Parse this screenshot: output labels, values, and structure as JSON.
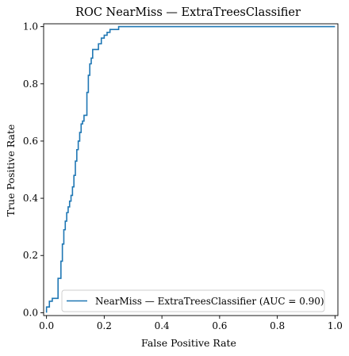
{
  "chart_data": {
    "type": "line",
    "title": "ROC NearMiss — ExtraTreesClassifier",
    "xlabel": "False Positive Rate",
    "ylabel": "True Positive Rate",
    "xlim": [
      -0.01,
      1.01
    ],
    "ylim": [
      -0.01,
      1.01
    ],
    "xticks": [
      0.0,
      0.2,
      0.4,
      0.6,
      0.8,
      1.0
    ],
    "yticks": [
      0.0,
      0.2,
      0.4,
      0.6,
      0.8,
      1.0
    ],
    "xtick_labels": [
      "0.0",
      "0.2",
      "0.4",
      "0.6",
      "0.8",
      "1.0"
    ],
    "ytick_labels": [
      "0.0",
      "0.2",
      "0.4",
      "0.6",
      "0.8",
      "1.0"
    ],
    "grid": false,
    "legend_position": "lower-right",
    "series": [
      {
        "name": "NearMiss — ExtraTreesClassifier (AUC = 0.90)",
        "color": "#1f77b4",
        "x": [
          0.0,
          0.0,
          0.01,
          0.01,
          0.02,
          0.02,
          0.03,
          0.03,
          0.04,
          0.04,
          0.05,
          0.05,
          0.055,
          0.055,
          0.06,
          0.06,
          0.065,
          0.065,
          0.07,
          0.07,
          0.075,
          0.075,
          0.08,
          0.08,
          0.085,
          0.085,
          0.09,
          0.09,
          0.095,
          0.095,
          0.1,
          0.1,
          0.105,
          0.105,
          0.11,
          0.11,
          0.115,
          0.115,
          0.12,
          0.12,
          0.125,
          0.125,
          0.13,
          0.13,
          0.14,
          0.14,
          0.145,
          0.145,
          0.15,
          0.15,
          0.155,
          0.155,
          0.16,
          0.16,
          0.17,
          0.17,
          0.18,
          0.18,
          0.19,
          0.19,
          0.2,
          0.2,
          0.21,
          0.21,
          0.22,
          0.22,
          0.25,
          0.25,
          1.0
        ],
        "y": [
          0.0,
          0.02,
          0.02,
          0.04,
          0.04,
          0.05,
          0.05,
          0.05,
          0.05,
          0.12,
          0.12,
          0.18,
          0.18,
          0.24,
          0.24,
          0.29,
          0.29,
          0.32,
          0.32,
          0.35,
          0.35,
          0.37,
          0.37,
          0.39,
          0.39,
          0.41,
          0.41,
          0.44,
          0.44,
          0.48,
          0.48,
          0.53,
          0.53,
          0.57,
          0.57,
          0.6,
          0.6,
          0.63,
          0.63,
          0.66,
          0.66,
          0.67,
          0.67,
          0.69,
          0.69,
          0.77,
          0.77,
          0.83,
          0.83,
          0.87,
          0.87,
          0.89,
          0.89,
          0.92,
          0.92,
          0.92,
          0.92,
          0.94,
          0.94,
          0.96,
          0.96,
          0.97,
          0.97,
          0.98,
          0.98,
          0.99,
          0.99,
          1.0,
          1.0
        ]
      }
    ]
  }
}
